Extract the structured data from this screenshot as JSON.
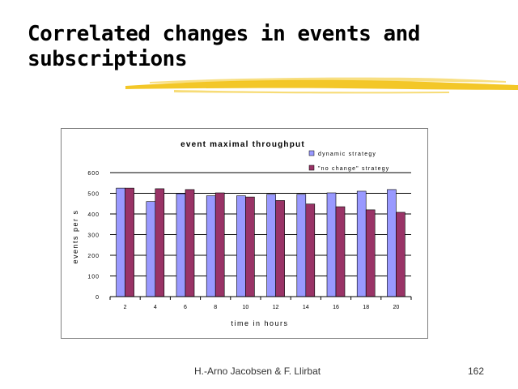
{
  "slide": {
    "title_line1": "Correlated changes in events and",
    "title_line2": "subscriptions",
    "footer_authors": "H.-Arno Jacobsen & F. Llirbat",
    "page_number": "162"
  },
  "colors": {
    "series1": "#9999ff",
    "series2": "#993366",
    "brush": "#f2c41c",
    "axis": "#000000"
  },
  "chart_data": {
    "type": "bar",
    "title": "event maximal throughput",
    "xlabel": "time in hours",
    "ylabel": "events per s",
    "categories": [
      "2",
      "4",
      "6",
      "8",
      "10",
      "12",
      "14",
      "16",
      "18",
      "20"
    ],
    "series": [
      {
        "name": "dynamic strategy",
        "values": [
          525,
          460,
          498,
          488,
          488,
          495,
          495,
          502,
          510,
          518
        ]
      },
      {
        "name": "\"no change\" strategy",
        "values": [
          525,
          522,
          518,
          502,
          482,
          465,
          448,
          435,
          420,
          408
        ]
      }
    ],
    "ylim": [
      0,
      600
    ],
    "yticks": [
      0,
      100,
      200,
      300,
      400,
      500,
      600
    ],
    "grid": true,
    "legend_position": "top-right"
  }
}
